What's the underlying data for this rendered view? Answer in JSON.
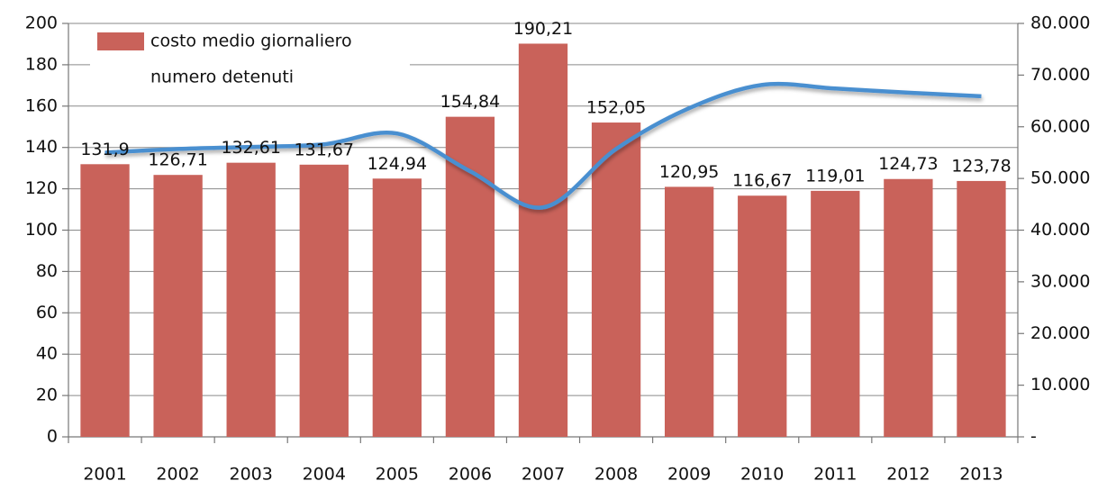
{
  "chart_data": {
    "type": "bar-line",
    "categories": [
      "2001",
      "2002",
      "2003",
      "2004",
      "2005",
      "2006",
      "2007",
      "2008",
      "2009",
      "2010",
      "2011",
      "2012",
      "2013"
    ],
    "series": [
      {
        "name": "costo medio giornaliero",
        "type": "bar",
        "color": "#c9625a",
        "values": [
          131.9,
          126.71,
          132.61,
          131.67,
          124.94,
          154.84,
          190.21,
          152.05,
          120.95,
          116.67,
          119.01,
          124.73,
          123.78
        ],
        "value_labels": [
          "131,9",
          "126,71",
          "132,61",
          "131,67",
          "124,94",
          "154,84",
          "190,21",
          "152,05",
          "120,95",
          "116,67",
          "119,01",
          "124,73",
          "123,78"
        ]
      },
      {
        "name": "numero detenuti",
        "type": "line",
        "axis": "y2",
        "color": "#4a8fd0",
        "values": [
          55000,
          55700,
          56100,
          56600,
          58700,
          51400,
          44400,
          55700,
          63600,
          68100,
          67400,
          66600,
          65900
        ]
      }
    ],
    "ylim": [
      0,
      200
    ],
    "yticks": [
      0,
      20,
      40,
      60,
      80,
      100,
      120,
      140,
      160,
      180,
      200
    ],
    "y2lim": [
      0,
      80000
    ],
    "y2ticks": [
      {
        "value": 0,
        "label": "-"
      },
      {
        "value": 10000,
        "label": "10.000"
      },
      {
        "value": 20000,
        "label": "20.000"
      },
      {
        "value": 30000,
        "label": "30.000"
      },
      {
        "value": 40000,
        "label": "40.000"
      },
      {
        "value": 50000,
        "label": "50.000"
      },
      {
        "value": 60000,
        "label": "60.000"
      },
      {
        "value": 70000,
        "label": "70.000"
      },
      {
        "value": 80000,
        "label": "80.000"
      }
    ],
    "grid": true,
    "legend": "top-left"
  }
}
